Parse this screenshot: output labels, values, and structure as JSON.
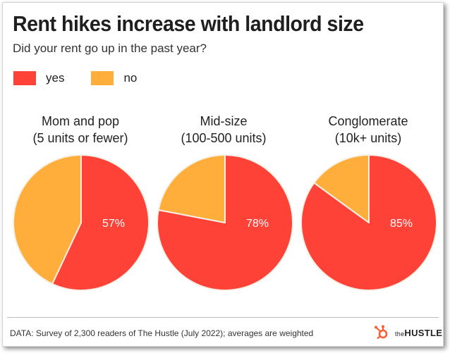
{
  "colors": {
    "yes": "#ff4238",
    "no": "#ffad3b",
    "divider": "#f5f0e6"
  },
  "header": {
    "title": "Rent hikes increase with landlord size",
    "subtitle": "Did your rent go up in the past year?"
  },
  "legend": [
    {
      "key": "yes",
      "label": "yes"
    },
    {
      "key": "no",
      "label": "no"
    }
  ],
  "chart_data": {
    "type": "pie",
    "title": "Rent hikes increase with landlord size",
    "subtitle": "Did your rent go up in the past year?",
    "legend_position": "top-left",
    "categories": [
      "yes",
      "no"
    ],
    "charts": [
      {
        "title_line1": "Mom and pop",
        "title_line2": "(5 units or fewer)",
        "values": [
          57,
          43
        ],
        "label": "57%"
      },
      {
        "title_line1": "Mid-size",
        "title_line2": "(100-500 units)",
        "values": [
          78,
          22
        ],
        "label": "78%"
      },
      {
        "title_line1": "Conglomerate",
        "title_line2": "(10k+ units)",
        "values": [
          85,
          15
        ],
        "label": "85%"
      }
    ]
  },
  "footer": {
    "source": "DATA: Survey of 2,300 readers of The Hustle (July 2022); averages are weighted",
    "logo_prefix": "the",
    "logo_word": "HUSTLE"
  }
}
